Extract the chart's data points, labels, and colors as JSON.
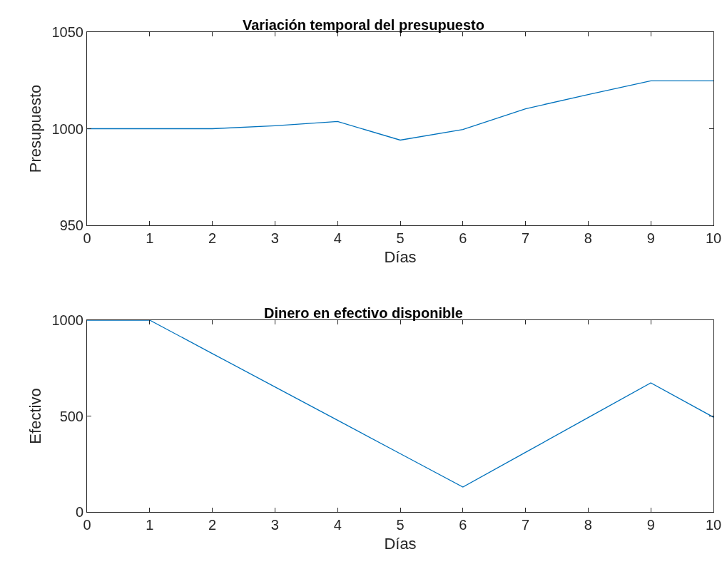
{
  "chart_data": [
    {
      "type": "line",
      "title": "Variación temporal del presupuesto",
      "xlabel": "Días",
      "ylabel": "Presupuesto",
      "x": [
        0,
        1,
        2,
        3,
        4,
        5,
        6,
        7,
        8,
        9,
        10
      ],
      "values": [
        1000,
        1000,
        1000,
        1001.5,
        1003.7,
        994.1,
        999.6,
        1010.3,
        1017.7,
        1024.8,
        1024.8
      ],
      "color": "#0072bd",
      "xlim": [
        0,
        10
      ],
      "ylim": [
        950,
        1050
      ],
      "xticks": [
        0,
        1,
        2,
        3,
        4,
        5,
        6,
        7,
        8,
        9,
        10
      ],
      "yticks": [
        950,
        1000,
        1050
      ],
      "grid": false
    },
    {
      "type": "line",
      "title": "Dinero en efectivo disponible",
      "xlabel": "Días",
      "ylabel": "Efectivo",
      "x": [
        0,
        1,
        2,
        3,
        4,
        5,
        6,
        7,
        8,
        9,
        10
      ],
      "values": [
        1000,
        1000,
        826,
        652,
        478,
        304,
        130,
        311,
        492,
        673,
        494
      ],
      "color": "#0072bd",
      "xlim": [
        0,
        10
      ],
      "ylim": [
        0,
        1000
      ],
      "xticks": [
        0,
        1,
        2,
        3,
        4,
        5,
        6,
        7,
        8,
        9,
        10
      ],
      "yticks": [
        0,
        500,
        1000
      ],
      "grid": false
    }
  ]
}
